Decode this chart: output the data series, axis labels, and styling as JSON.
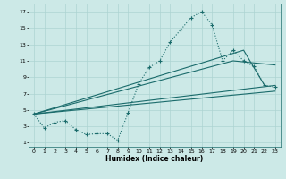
{
  "background_color": "#cce9e7",
  "grid_color": "#add4d2",
  "line_color": "#1a6b6b",
  "xlim": [
    -0.5,
    23.5
  ],
  "ylim": [
    0.5,
    18.0
  ],
  "xticks": [
    0,
    1,
    2,
    3,
    4,
    5,
    6,
    7,
    8,
    9,
    10,
    11,
    12,
    13,
    14,
    15,
    16,
    17,
    18,
    19,
    20,
    21,
    22,
    23
  ],
  "yticks": [
    1,
    3,
    5,
    7,
    9,
    11,
    13,
    15,
    17
  ],
  "xlabel": "Humidex (Indice chaleur)",
  "curve_x": [
    0,
    1,
    2,
    3,
    4,
    5,
    6,
    7,
    8,
    9,
    10,
    11,
    12,
    13,
    14,
    15,
    16,
    17,
    18,
    19,
    20,
    21,
    22,
    23
  ],
  "curve_y": [
    4.5,
    2.8,
    3.5,
    3.7,
    2.6,
    2.0,
    2.1,
    2.1,
    1.3,
    4.7,
    8.2,
    10.2,
    11.0,
    13.3,
    14.8,
    16.3,
    17.0,
    15.4,
    11.0,
    12.3,
    11.0,
    10.3,
    8.0,
    7.8
  ],
  "line1_x": [
    0,
    23
  ],
  "line1_y": [
    4.5,
    8.0
  ],
  "line2_x": [
    0,
    23
  ],
  "line2_y": [
    4.5,
    7.3
  ],
  "line3_x": [
    0,
    19,
    23
  ],
  "line3_y": [
    4.5,
    11.0,
    10.5
  ],
  "line4_x": [
    0,
    20,
    22
  ],
  "line4_y": [
    4.5,
    12.3,
    8.0
  ]
}
